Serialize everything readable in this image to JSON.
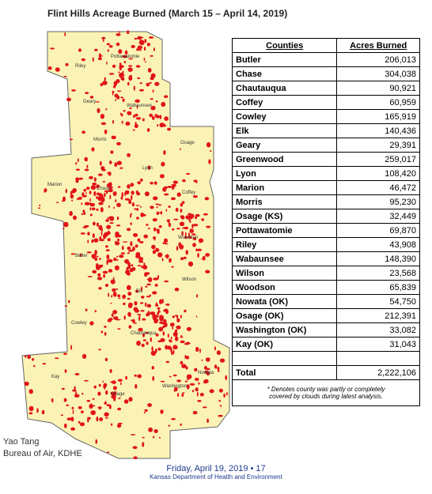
{
  "title": "Flint Hills Acreage Burned (March 15 – April 14, 2019)",
  "map": {
    "labels": [
      "Riley",
      "Pottawatomie",
      "Geary",
      "Wabaunsee",
      "Morris",
      "Osage",
      "Lyon",
      "Marion",
      "Chase",
      "Coffey",
      "Woodson",
      "Butler",
      "Wilson",
      "Elk",
      "Cowley",
      "Chautauqua",
      "Kay",
      "Osage",
      "Washington",
      "Nowata"
    ]
  },
  "table": {
    "headers": [
      "Counties",
      "Acres Burned"
    ],
    "rows": [
      [
        "Butler",
        "206,013"
      ],
      [
        "Chase",
        "304,038"
      ],
      [
        "Chautauqua",
        "90,921"
      ],
      [
        "Coffey",
        "60,959"
      ],
      [
        "Cowley",
        "165,919"
      ],
      [
        "Elk",
        "140,436"
      ],
      [
        "Geary",
        "29,391"
      ],
      [
        "Greenwood",
        "259,017"
      ],
      [
        "Lyon",
        "108,420"
      ],
      [
        "Marion",
        "46,472"
      ],
      [
        "Morris",
        "95,230"
      ],
      [
        "Osage (KS)",
        "32,449"
      ],
      [
        "Pottawatomie",
        "69,870"
      ],
      [
        "Riley",
        "43,908"
      ],
      [
        "Wabaunsee",
        "148,390"
      ],
      [
        "Wilson",
        "23,568"
      ],
      [
        "Woodson",
        "65,839"
      ],
      [
        "Nowata (OK)",
        "54,750"
      ],
      [
        "Osage (OK)",
        "212,391"
      ],
      [
        "Washington (OK)",
        "33,082"
      ],
      [
        "Kay (OK)",
        "31,043"
      ]
    ],
    "total": [
      "Total",
      "2,222,106"
    ],
    "footnote": "* Denotes county was partly or completely covered by clouds during latest analysis."
  },
  "author": [
    "Yao Tang",
    "Bureau of Air, KDHE"
  ],
  "footer": {
    "date": "Friday, April 19, 2019 • 17",
    "org": "Kansas Department of Health and Environment"
  }
}
